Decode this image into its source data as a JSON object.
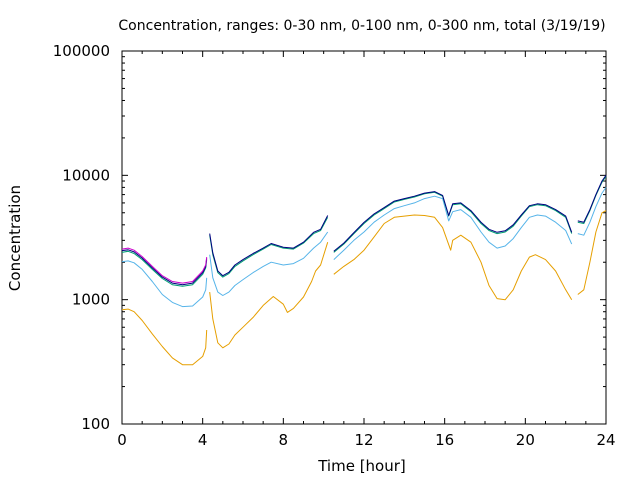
{
  "chart_data": {
    "type": "line",
    "title": "Concentration, ranges: 0-30 nm, 0-100 nm, 0-300 nm, total (3/19/19)",
    "xlabel": "Time [hour]",
    "ylabel": "Concentration",
    "xlim": [
      0,
      24
    ],
    "ylim": [
      100,
      100000
    ],
    "yscale": "log",
    "xticks": [
      0,
      4,
      8,
      12,
      16,
      20,
      24
    ],
    "xtick_labels": [
      "0",
      "4",
      "8",
      "12",
      "16",
      "20",
      "24"
    ],
    "yticks": [
      100,
      1000,
      10000,
      100000
    ],
    "ytick_labels": [
      "100",
      "1000",
      "10000",
      "100000"
    ],
    "grid": false,
    "series": [
      {
        "color": "#e69f00",
        "segments": [
          [
            [
              0.0,
              830
            ],
            [
              0.3,
              840
            ],
            [
              0.6,
              800
            ],
            [
              1.0,
              680
            ],
            [
              1.5,
              530
            ],
            [
              2.0,
              420
            ],
            [
              2.5,
              340
            ],
            [
              3.0,
              300
            ],
            [
              3.5,
              300
            ],
            [
              4.0,
              350
            ],
            [
              4.15,
              410
            ],
            [
              4.2,
              570
            ]
          ],
          [
            [
              4.35,
              1150
            ],
            [
              4.5,
              700
            ],
            [
              4.75,
              450
            ],
            [
              5.0,
              410
            ],
            [
              5.3,
              440
            ],
            [
              5.6,
              520
            ],
            [
              6.0,
              600
            ],
            [
              6.5,
              720
            ],
            [
              7.0,
              900
            ],
            [
              7.5,
              1060
            ],
            [
              8.0,
              920
            ],
            [
              8.2,
              790
            ],
            [
              8.5,
              850
            ],
            [
              9.0,
              1050
            ],
            [
              9.4,
              1400
            ],
            [
              9.6,
              1700
            ],
            [
              9.85,
              1900
            ],
            [
              10.2,
              2900
            ]
          ],
          [
            [
              10.5,
              1600
            ],
            [
              11.0,
              1850
            ],
            [
              11.5,
              2100
            ],
            [
              12.0,
              2500
            ],
            [
              12.5,
              3200
            ],
            [
              13.0,
              4100
            ],
            [
              13.5,
              4600
            ],
            [
              14.0,
              4700
            ],
            [
              14.5,
              4800
            ],
            [
              15.0,
              4750
            ],
            [
              15.5,
              4600
            ],
            [
              15.9,
              3800
            ],
            [
              16.3,
              2500
            ],
            [
              16.4,
              3000
            ],
            [
              16.8,
              3300
            ],
            [
              17.3,
              2900
            ],
            [
              17.8,
              2000
            ],
            [
              18.2,
              1300
            ],
            [
              18.6,
              1020
            ],
            [
              19.0,
              1000
            ],
            [
              19.4,
              1200
            ],
            [
              19.8,
              1700
            ],
            [
              20.2,
              2200
            ],
            [
              20.5,
              2300
            ],
            [
              21.0,
              2100
            ],
            [
              21.5,
              1700
            ],
            [
              22.0,
              1200
            ],
            [
              22.3,
              1000
            ]
          ],
          [
            [
              22.6,
              1100
            ],
            [
              22.9,
              1200
            ],
            [
              23.2,
              2000
            ],
            [
              23.5,
              3500
            ],
            [
              23.8,
              5000
            ],
            [
              24.0,
              5200
            ]
          ]
        ]
      },
      {
        "color": "#56b4e9",
        "segments": [
          [
            [
              0.0,
              2020
            ],
            [
              0.3,
              2050
            ],
            [
              0.6,
              1980
            ],
            [
              1.0,
              1750
            ],
            [
              1.5,
              1400
            ],
            [
              2.0,
              1100
            ],
            [
              2.5,
              950
            ],
            [
              3.0,
              880
            ],
            [
              3.5,
              890
            ],
            [
              4.0,
              1050
            ],
            [
              4.15,
              1200
            ],
            [
              4.2,
              1500
            ]
          ],
          [
            [
              4.35,
              2300
            ],
            [
              4.5,
              1500
            ],
            [
              4.75,
              1150
            ],
            [
              5.0,
              1080
            ],
            [
              5.3,
              1150
            ],
            [
              5.6,
              1300
            ],
            [
              6.0,
              1450
            ],
            [
              6.5,
              1650
            ],
            [
              7.0,
              1850
            ],
            [
              7.4,
              2000
            ],
            [
              8.0,
              1900
            ],
            [
              8.5,
              1950
            ],
            [
              9.0,
              2150
            ],
            [
              9.5,
              2600
            ],
            [
              9.85,
              2900
            ],
            [
              10.2,
              3500
            ]
          ],
          [
            [
              10.5,
              2100
            ],
            [
              11.0,
              2500
            ],
            [
              11.5,
              3000
            ],
            [
              12.0,
              3500
            ],
            [
              12.5,
              4200
            ],
            [
              13.0,
              4800
            ],
            [
              13.5,
              5400
            ],
            [
              14.0,
              5700
            ],
            [
              14.5,
              6000
            ],
            [
              15.0,
              6500
            ],
            [
              15.5,
              6800
            ],
            [
              15.9,
              6500
            ],
            [
              16.2,
              4300
            ],
            [
              16.4,
              5100
            ],
            [
              16.8,
              5300
            ],
            [
              17.3,
              4600
            ],
            [
              17.8,
              3500
            ],
            [
              18.2,
              2900
            ],
            [
              18.6,
              2600
            ],
            [
              19.0,
              2700
            ],
            [
              19.4,
              3100
            ],
            [
              19.8,
              3800
            ],
            [
              20.2,
              4600
            ],
            [
              20.6,
              4800
            ],
            [
              21.0,
              4700
            ],
            [
              21.5,
              4200
            ],
            [
              22.0,
              3600
            ],
            [
              22.3,
              2800
            ]
          ],
          [
            [
              22.6,
              3400
            ],
            [
              22.9,
              3300
            ],
            [
              23.2,
              4200
            ],
            [
              23.5,
              5600
            ],
            [
              23.8,
              7200
            ],
            [
              24.0,
              8000
            ]
          ]
        ]
      },
      {
        "color": "#009e73",
        "segments": [
          [
            [
              0.0,
              2400
            ],
            [
              0.3,
              2450
            ],
            [
              0.6,
              2350
            ],
            [
              1.0,
              2100
            ],
            [
              1.5,
              1750
            ],
            [
              2.0,
              1480
            ],
            [
              2.5,
              1320
            ],
            [
              3.0,
              1280
            ],
            [
              3.5,
              1320
            ],
            [
              4.0,
              1600
            ],
            [
              4.15,
              1800
            ],
            [
              4.2,
              2100
            ]
          ],
          [
            [
              4.35,
              3300
            ],
            [
              4.5,
              2300
            ],
            [
              4.75,
              1650
            ],
            [
              5.0,
              1520
            ],
            [
              5.3,
              1620
            ],
            [
              5.6,
              1850
            ],
            [
              6.0,
              2050
            ],
            [
              6.5,
              2300
            ],
            [
              7.0,
              2550
            ],
            [
              7.4,
              2780
            ],
            [
              8.0,
              2600
            ],
            [
              8.5,
              2550
            ],
            [
              9.0,
              2850
            ],
            [
              9.5,
              3400
            ],
            [
              9.85,
              3600
            ],
            [
              10.2,
              4600
            ]
          ],
          [
            [
              10.5,
              2400
            ],
            [
              11.0,
              2800
            ],
            [
              11.5,
              3400
            ],
            [
              12.0,
              4100
            ],
            [
              12.5,
              4800
            ],
            [
              13.0,
              5400
            ],
            [
              13.5,
              6100
            ],
            [
              14.0,
              6400
            ],
            [
              14.5,
              6700
            ],
            [
              15.0,
              7100
            ],
            [
              15.5,
              7300
            ],
            [
              15.9,
              6800
            ],
            [
              16.2,
              4700
            ],
            [
              16.4,
              5800
            ],
            [
              16.8,
              5900
            ],
            [
              17.3,
              5100
            ],
            [
              17.8,
              4100
            ],
            [
              18.2,
              3600
            ],
            [
              18.6,
              3400
            ],
            [
              19.0,
              3500
            ],
            [
              19.4,
              3900
            ],
            [
              19.8,
              4700
            ],
            [
              20.2,
              5600
            ],
            [
              20.6,
              5800
            ],
            [
              21.0,
              5700
            ],
            [
              21.5,
              5200
            ],
            [
              22.0,
              4600
            ],
            [
              22.3,
              3400
            ]
          ],
          [
            [
              22.6,
              4200
            ],
            [
              22.9,
              4100
            ],
            [
              23.2,
              5200
            ],
            [
              23.5,
              6900
            ],
            [
              23.8,
              8800
            ],
            [
              24.0,
              9800
            ]
          ]
        ]
      },
      {
        "color": "#000080",
        "segments": [
          [
            [
              0.0,
              2480
            ],
            [
              0.3,
              2520
            ],
            [
              0.6,
              2420
            ],
            [
              1.0,
              2160
            ],
            [
              1.5,
              1800
            ],
            [
              2.0,
              1520
            ],
            [
              2.5,
              1360
            ],
            [
              3.0,
              1320
            ],
            [
              3.5,
              1360
            ],
            [
              4.0,
              1650
            ],
            [
              4.15,
              1850
            ],
            [
              4.2,
              2150
            ]
          ],
          [
            [
              4.35,
              3400
            ],
            [
              4.5,
              2380
            ],
            [
              4.75,
              1700
            ],
            [
              5.0,
              1560
            ],
            [
              5.3,
              1660
            ],
            [
              5.6,
              1900
            ],
            [
              6.0,
              2100
            ],
            [
              6.5,
              2350
            ],
            [
              7.0,
              2600
            ],
            [
              7.4,
              2830
            ],
            [
              8.0,
              2640
            ],
            [
              8.5,
              2600
            ],
            [
              9.0,
              2900
            ],
            [
              9.5,
              3480
            ],
            [
              9.85,
              3680
            ],
            [
              10.2,
              4750
            ]
          ],
          [
            [
              10.5,
              2450
            ],
            [
              11.0,
              2850
            ],
            [
              11.5,
              3460
            ],
            [
              12.0,
              4180
            ],
            [
              12.5,
              4900
            ],
            [
              13.0,
              5500
            ],
            [
              13.5,
              6200
            ],
            [
              14.0,
              6500
            ],
            [
              14.5,
              6800
            ],
            [
              15.0,
              7200
            ],
            [
              15.5,
              7400
            ],
            [
              15.9,
              6900
            ],
            [
              16.2,
              4750
            ],
            [
              16.4,
              5900
            ],
            [
              16.8,
              6000
            ],
            [
              17.3,
              5200
            ],
            [
              17.8,
              4200
            ],
            [
              18.2,
              3680
            ],
            [
              18.6,
              3480
            ],
            [
              19.0,
              3580
            ],
            [
              19.4,
              4000
            ],
            [
              19.8,
              4800
            ],
            [
              20.2,
              5700
            ],
            [
              20.6,
              5900
            ],
            [
              21.0,
              5800
            ],
            [
              21.5,
              5300
            ],
            [
              22.0,
              4700
            ],
            [
              22.3,
              3480
            ]
          ],
          [
            [
              22.6,
              4300
            ],
            [
              22.9,
              4200
            ],
            [
              23.2,
              5300
            ],
            [
              23.5,
              7000
            ],
            [
              23.8,
              9000
            ],
            [
              24.0,
              10000
            ]
          ]
        ]
      },
      {
        "color": "#cc00cc",
        "segments": [
          [
            [
              0.0,
              2550
            ],
            [
              0.3,
              2600
            ],
            [
              0.6,
              2500
            ],
            [
              1.0,
              2220
            ],
            [
              1.5,
              1850
            ],
            [
              2.0,
              1560
            ],
            [
              2.5,
              1400
            ],
            [
              3.0,
              1360
            ],
            [
              3.5,
              1400
            ],
            [
              4.0,
              1700
            ],
            [
              4.15,
              1900
            ],
            [
              4.2,
              2200
            ]
          ]
        ]
      }
    ]
  }
}
